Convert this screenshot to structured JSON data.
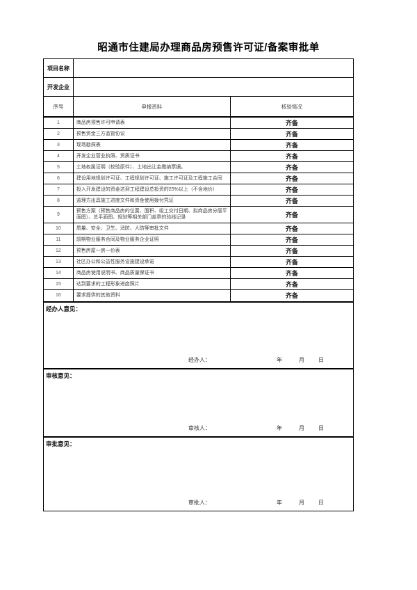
{
  "title": "昭通市住建局办理商品房预售许可证/备案审批单",
  "fields": [
    {
      "label": "项目名称",
      "value": ""
    },
    {
      "label": "开发企业",
      "value": ""
    }
  ],
  "table": {
    "headers": {
      "no": "序号",
      "material": "申报资料",
      "status": "核验情况"
    },
    "rows": [
      {
        "no": "1",
        "material": "商品房预售许可申请表",
        "status": "齐备"
      },
      {
        "no": "2",
        "material": "预售资金三方监管协议",
        "status": "齐备"
      },
      {
        "no": "3",
        "material": "现场勘探表",
        "status": "齐备"
      },
      {
        "no": "4",
        "material": "开发企业营业执照、资质证书",
        "status": "齐备"
      },
      {
        "no": "5",
        "material": "土地权属证明（校验原件）、土地出让金缴纳票据。",
        "status": "齐备"
      },
      {
        "no": "6",
        "material": "建设用地规划许可证、工程规划许可证、施工许可证及工程施工合同",
        "status": "齐备"
      },
      {
        "no": "7",
        "material": "投入开发建设的资金达到工程建设总投资的25%以上（不含地价）",
        "status": "齐备"
      },
      {
        "no": "8",
        "material": "监理方出具施工进度文件和资金使用拨付凭证",
        "status": "齐备"
      },
      {
        "no": "9",
        "material": "预售方案（预售商品房的位置、面积、竣工交付日期、拟商品房分层平面图）、总平面图、规划等相关部门盖章的验线记录",
        "status": "齐备"
      },
      {
        "no": "10",
        "material": "质量、安全、卫生、消防、人防等审批文件",
        "status": "齐备"
      },
      {
        "no": "11",
        "material": "前期物业服务合同及物业服务企业证照",
        "status": "齐备"
      },
      {
        "no": "12",
        "material": "预售房屋一房一价表",
        "status": "齐备"
      },
      {
        "no": "13",
        "material": "社区办公和公益性服务设施建设承诺",
        "status": "齐备"
      },
      {
        "no": "14",
        "material": "商品房使用说明书、商品质量保证书",
        "status": "齐备"
      },
      {
        "no": "15",
        "material": "达到要求的工程形象进度照片",
        "status": "齐备"
      },
      {
        "no": "16",
        "material": "要求提供的其他资料",
        "status": "齐备"
      }
    ]
  },
  "sections": [
    {
      "label": "经办人意见：",
      "signer": "经办人："
    },
    {
      "label": "审核意见：",
      "signer": "审核人："
    },
    {
      "label": "审批意见：",
      "signer": "审批人："
    }
  ],
  "date_labels": {
    "year": "年",
    "month": "月",
    "day": "日"
  }
}
